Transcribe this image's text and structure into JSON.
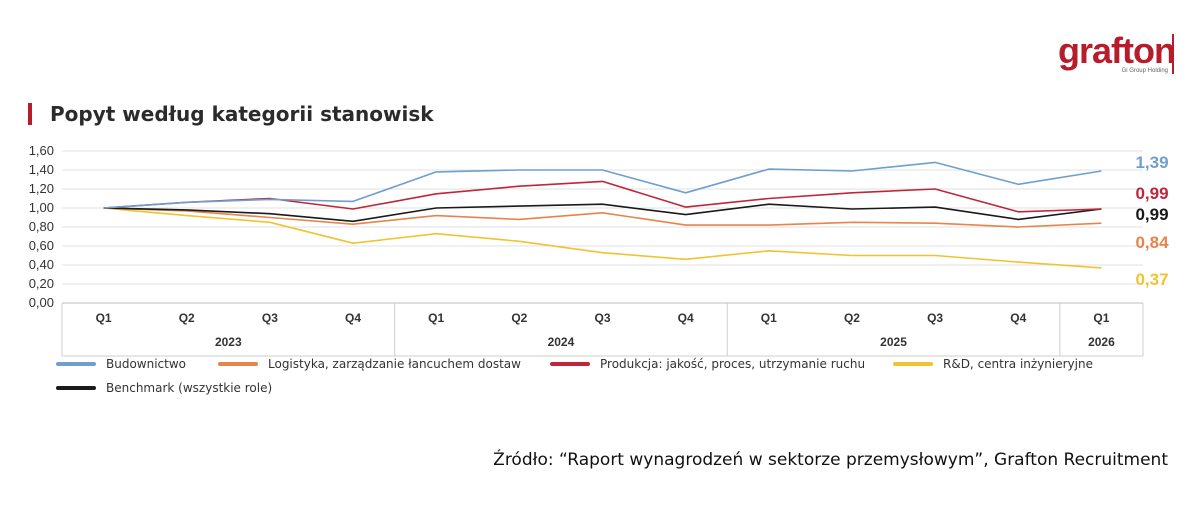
{
  "brand": {
    "logo_text": "grafton",
    "logo_subtext": "Gi Group Holding",
    "accent_color": "#b71c2b"
  },
  "source_text": "Źródło: “Raport wynagrodzeń w sektorze przemysłowym”, Grafton Recruitment",
  "chart_data": {
    "type": "line",
    "title": "Popyt według kategorii stanowisk",
    "xlabel": "",
    "ylabel": "",
    "ylim": [
      0,
      1.6
    ],
    "yticks": [
      "0,00",
      "0,20",
      "0,40",
      "0,60",
      "0,80",
      "1,00",
      "1,20",
      "1,40",
      "1,60"
    ],
    "grid": true,
    "legend_position": "bottom",
    "categories": [
      "Q1",
      "Q2",
      "Q3",
      "Q4",
      "Q1",
      "Q2",
      "Q3",
      "Q4",
      "Q1",
      "Q2",
      "Q3",
      "Q4",
      "Q1"
    ],
    "years": [
      {
        "label": "2023",
        "span": [
          0,
          3
        ]
      },
      {
        "label": "2024",
        "span": [
          4,
          7
        ]
      },
      {
        "label": "2025",
        "span": [
          8,
          11
        ]
      },
      {
        "label": "2026",
        "span": [
          12,
          12
        ]
      }
    ],
    "series": [
      {
        "name": "Budownictwo",
        "color": "#6f9fd0",
        "end_label": "1,39",
        "values": [
          1.0,
          1.06,
          1.09,
          1.07,
          1.38,
          1.4,
          1.4,
          1.16,
          1.41,
          1.39,
          1.48,
          1.25,
          1.39
        ]
      },
      {
        "name": "Logistyka, zarządzanie łancuchem dostaw",
        "color": "#e8844a",
        "end_label": "0,84",
        "values": [
          1.0,
          0.97,
          0.9,
          0.83,
          0.92,
          0.88,
          0.95,
          0.82,
          0.82,
          0.85,
          0.84,
          0.8,
          0.84
        ]
      },
      {
        "name": "Produkcja: jakość, proces, utrzymanie ruchu",
        "color": "#c0263a",
        "end_label": "0,99",
        "values": [
          1.0,
          1.06,
          1.1,
          0.99,
          1.15,
          1.23,
          1.28,
          1.01,
          1.1,
          1.16,
          1.2,
          0.96,
          0.99
        ]
      },
      {
        "name": "R&D, centra inżynieryjne",
        "color": "#f2c230",
        "end_label": "0,37",
        "values": [
          1.0,
          0.92,
          0.85,
          0.63,
          0.73,
          0.65,
          0.53,
          0.46,
          0.55,
          0.5,
          0.5,
          0.43,
          0.37
        ]
      },
      {
        "name": "Benchmark (wszystkie role)",
        "color": "#1a1a1a",
        "end_label": "0,99",
        "values": [
          1.0,
          0.98,
          0.94,
          0.86,
          1.0,
          1.02,
          1.04,
          0.93,
          1.04,
          0.99,
          1.01,
          0.88,
          0.99
        ]
      }
    ]
  }
}
